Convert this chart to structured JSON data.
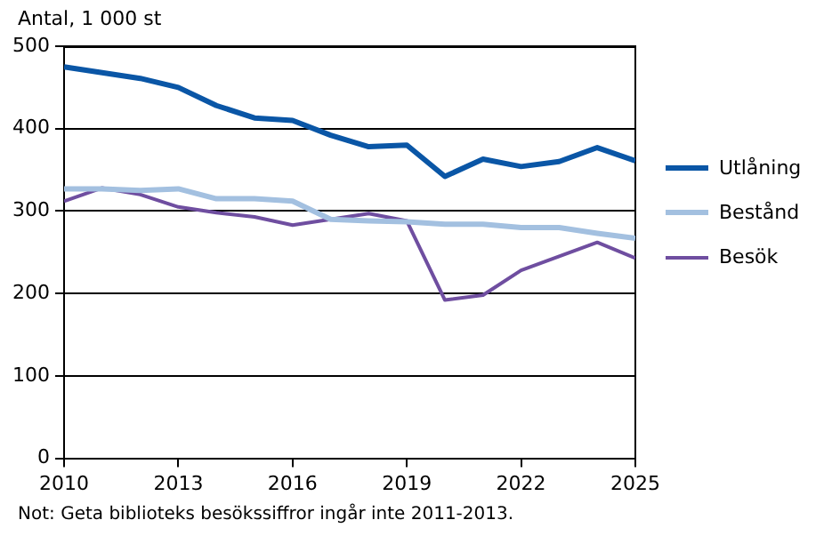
{
  "chart_data": {
    "type": "line",
    "ylabel": "Antal, 1 000 st",
    "x": [
      2010,
      2011,
      2012,
      2013,
      2014,
      2015,
      2016,
      2017,
      2018,
      2019,
      2020,
      2021,
      2022,
      2023,
      2024,
      2025
    ],
    "series": [
      {
        "name": "Utlåning",
        "color": "#0a56a6",
        "values": [
          475,
          468,
          461,
          450,
          428,
          413,
          410,
          392,
          378,
          380,
          342,
          363,
          354,
          360,
          377,
          361
        ]
      },
      {
        "name": "Bestånd",
        "color": "#a3c0e0",
        "values": [
          327,
          327,
          325,
          327,
          315,
          315,
          312,
          290,
          288,
          287,
          284,
          284,
          280,
          280,
          273,
          267
        ]
      },
      {
        "name": "Besök",
        "color": "#6f4ea0",
        "values": [
          312,
          328,
          320,
          305,
          298,
          293,
          283,
          290,
          297,
          288,
          192,
          198,
          228,
          245,
          262,
          243
        ]
      }
    ],
    "xlim": [
      2010,
      2025
    ],
    "xticks": [
      2010,
      2013,
      2016,
      2019,
      2022,
      2025
    ],
    "ylim": [
      0,
      500
    ],
    "yticks": [
      0,
      100,
      200,
      300,
      400,
      500
    ],
    "grid": "y",
    "legend": "right",
    "marker": "none",
    "line_style": "solid",
    "annotations": [
      "Not: Geta biblioteks besökssiffror ingår inte 2011-2013."
    ]
  }
}
